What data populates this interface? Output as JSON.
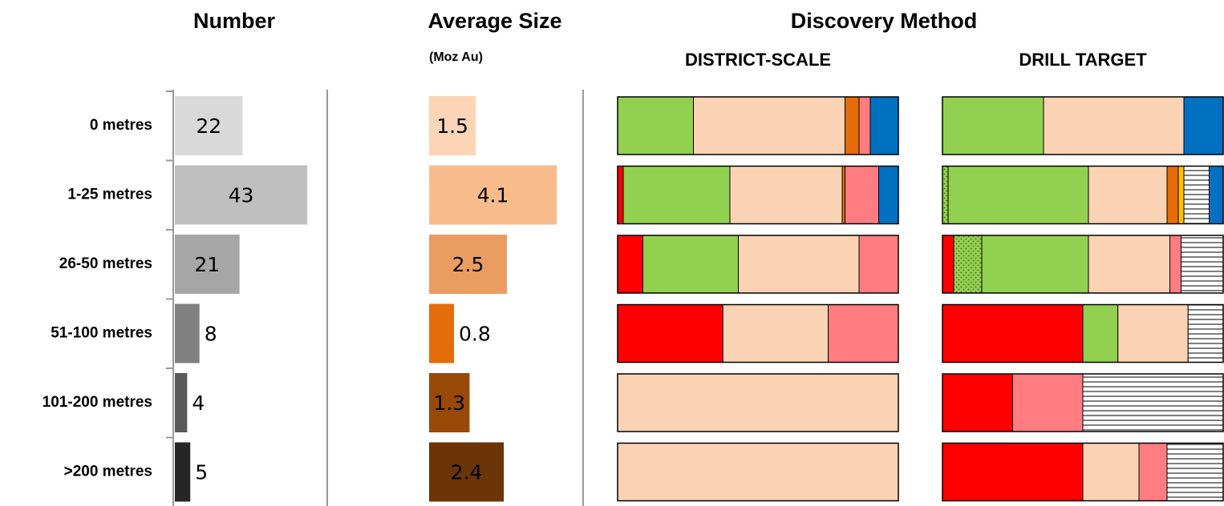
{
  "chart_data": [
    {
      "type": "bar",
      "title": "Number",
      "categories": [
        "0 metres",
        "1-25 metres",
        "26-50 metres",
        "51-100 metres",
        "101-200 metres",
        ">200 metres"
      ],
      "values": [
        22,
        43,
        21,
        8,
        4,
        5
      ],
      "colors": [
        "#d9d9d9",
        "#bfbfbf",
        "#a6a6a6",
        "#808080",
        "#595959",
        "#262626"
      ],
      "xlim": [
        0,
        50
      ]
    },
    {
      "type": "bar",
      "title": "Average Size",
      "subtitle": "(Moz Au)",
      "values": [
        1.5,
        4.1,
        2.5,
        0.8,
        1.3,
        2.4
      ],
      "colors": [
        "#fbd5b5",
        "#f8bc8c",
        "#eb9c61",
        "#e46c0a",
        "#984807",
        "#6b3508"
      ],
      "xlim": [
        0,
        5
      ]
    },
    {
      "type": "stacked_bar",
      "title": "Discovery Method",
      "xlim": [
        0,
        100
      ],
      "panels": [
        {
          "subtitle": "DISTRICT-SCALE",
          "series": [
            {
              "color": "#ff0000",
              "values": [
                0,
                2,
                9,
                37.5,
                0,
                0
              ]
            },
            {
              "color": "#92d050",
              "pattern": "dots",
              "values": [
                0,
                0,
                0,
                0,
                0,
                0
              ]
            },
            {
              "color": "#92d050",
              "values": [
                27,
                38,
                34,
                0,
                0,
                0
              ]
            },
            {
              "color": "#fad3b4",
              "values": [
                54,
                40,
                43,
                37.5,
                100,
                100
              ]
            },
            {
              "color": "#e46c0a",
              "values": [
                5,
                1,
                0,
                0,
                0,
                0
              ]
            },
            {
              "color": "#ffc000",
              "values": [
                0,
                0,
                0,
                0,
                0,
                0
              ]
            },
            {
              "color": "#ff7c80",
              "values": [
                4,
                12,
                14,
                25,
                0,
                0
              ]
            },
            {
              "color": "#ffffff",
              "pattern": "hlines",
              "values": [
                0,
                0,
                0,
                0,
                0,
                0
              ]
            },
            {
              "color": "#0070c0",
              "values": [
                10,
                7,
                0,
                0,
                0,
                0
              ]
            }
          ]
        },
        {
          "subtitle": "DRILL TARGET",
          "series": [
            {
              "color": "#ff0000",
              "values": [
                0,
                0,
                4,
                50,
                25,
                50
              ]
            },
            {
              "color": "#92d050",
              "pattern": "dots",
              "values": [
                0,
                2,
                10,
                0,
                0,
                0
              ]
            },
            {
              "color": "#92d050",
              "values": [
                36,
                50,
                38,
                12.5,
                0,
                0
              ]
            },
            {
              "color": "#fad3b4",
              "values": [
                50,
                28,
                29,
                25,
                0,
                20
              ]
            },
            {
              "color": "#e46c0a",
              "values": [
                0,
                4,
                0,
                0,
                0,
                0
              ]
            },
            {
              "color": "#ffc000",
              "values": [
                0,
                2,
                0,
                0,
                0,
                0
              ]
            },
            {
              "color": "#ff7c80",
              "values": [
                0,
                0,
                4,
                0,
                25,
                10
              ]
            },
            {
              "color": "#ffffff",
              "pattern": "hlines",
              "values": [
                0,
                9,
                15,
                12.5,
                50,
                20
              ]
            },
            {
              "color": "#0070c0",
              "values": [
                14,
                5,
                0,
                0,
                0,
                0
              ]
            }
          ]
        }
      ]
    }
  ]
}
